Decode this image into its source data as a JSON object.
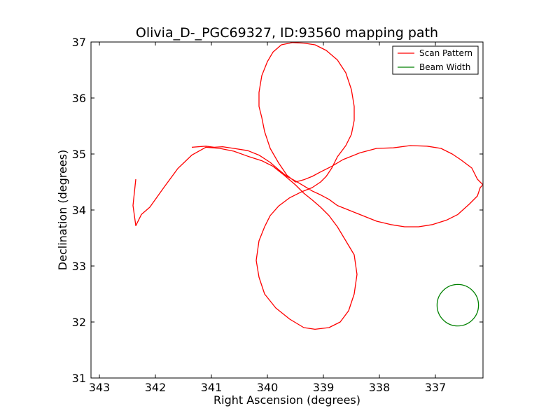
{
  "chart_data": {
    "type": "line",
    "title": "Olivia_D-_PGC69327, ID:93560 mapping path",
    "xlabel": "Right Ascension (degrees)",
    "ylabel": "Declination (degrees)",
    "xlim": [
      343.15,
      336.15
    ],
    "ylim": [
      31,
      37
    ],
    "x_axis_reversed": true,
    "xticks": [
      343,
      342,
      341,
      340,
      339,
      338,
      337
    ],
    "yticks": [
      31,
      32,
      33,
      34,
      35,
      36,
      37
    ],
    "legend_position": "top-right",
    "series": [
      {
        "name": "Scan Pattern",
        "color": "#ff0000",
        "kind": "path",
        "x": [
          341.35,
          341.1,
          340.95,
          340.8,
          340.6,
          340.35,
          340.15,
          339.95,
          339.8,
          339.65,
          339.5,
          339.35,
          339.2,
          339.05,
          338.9,
          338.75,
          338.55,
          338.3,
          338.05,
          337.8,
          337.55,
          337.3,
          337.05,
          336.8,
          336.6,
          336.4,
          336.25,
          336.2,
          336.15,
          336.25,
          336.35,
          336.55,
          336.7,
          336.9,
          337.15,
          337.45,
          337.75,
          338.05,
          338.35,
          338.65,
          338.85,
          339.05,
          339.2,
          339.35,
          339.5,
          339.65,
          339.8,
          339.95,
          340.05,
          340.1,
          340.15,
          340.15,
          340.1,
          340.0,
          339.9,
          339.75,
          339.55,
          339.35,
          339.15,
          338.95,
          338.75,
          338.6,
          338.5,
          338.45,
          338.45,
          338.5,
          338.6,
          338.75,
          338.85,
          338.95,
          339.05,
          339.2,
          339.4,
          339.6,
          339.8,
          339.95,
          340.05,
          340.15,
          340.2,
          340.15,
          340.05,
          339.85,
          339.6,
          339.35,
          339.15,
          338.9,
          338.7,
          338.55,
          338.45,
          338.4,
          338.45,
          338.6,
          338.75,
          338.9,
          339.05,
          339.2,
          339.35,
          339.5,
          339.7,
          339.9,
          340.1,
          340.35,
          340.6,
          340.85,
          341.1,
          341.35,
          341.6,
          341.85,
          342.1,
          342.25,
          342.35,
          342.4,
          342.35
        ],
        "y": [
          35.12,
          35.14,
          35.12,
          35.13,
          35.1,
          35.06,
          34.98,
          34.85,
          34.72,
          34.6,
          34.52,
          34.43,
          34.34,
          34.27,
          34.19,
          34.08,
          34.0,
          33.9,
          33.8,
          33.74,
          33.7,
          33.7,
          33.74,
          33.82,
          33.92,
          34.1,
          34.25,
          34.4,
          34.45,
          34.55,
          34.75,
          34.9,
          35.0,
          35.1,
          35.14,
          35.15,
          35.11,
          35.1,
          35.02,
          34.9,
          34.78,
          34.68,
          34.6,
          34.54,
          34.5,
          34.62,
          34.84,
          35.1,
          35.4,
          35.65,
          35.85,
          36.1,
          36.4,
          36.65,
          36.82,
          36.95,
          36.99,
          36.98,
          36.95,
          36.85,
          36.68,
          36.45,
          36.15,
          35.85,
          35.6,
          35.35,
          35.15,
          34.95,
          34.75,
          34.6,
          34.5,
          34.4,
          34.32,
          34.22,
          34.07,
          33.9,
          33.7,
          33.45,
          33.1,
          32.8,
          32.5,
          32.25,
          32.05,
          31.9,
          31.87,
          31.9,
          32.0,
          32.2,
          32.5,
          32.85,
          33.2,
          33.45,
          33.7,
          33.9,
          34.05,
          34.18,
          34.3,
          34.45,
          34.62,
          34.78,
          34.88,
          34.96,
          35.05,
          35.1,
          35.12,
          34.98,
          34.74,
          34.4,
          34.05,
          33.92,
          33.72,
          34.08,
          34.55
        ]
      },
      {
        "name": "Beam Width",
        "color": "#008000",
        "kind": "circle",
        "center_x": 336.6,
        "center_y": 32.3,
        "radius_deg": 0.37
      }
    ]
  }
}
